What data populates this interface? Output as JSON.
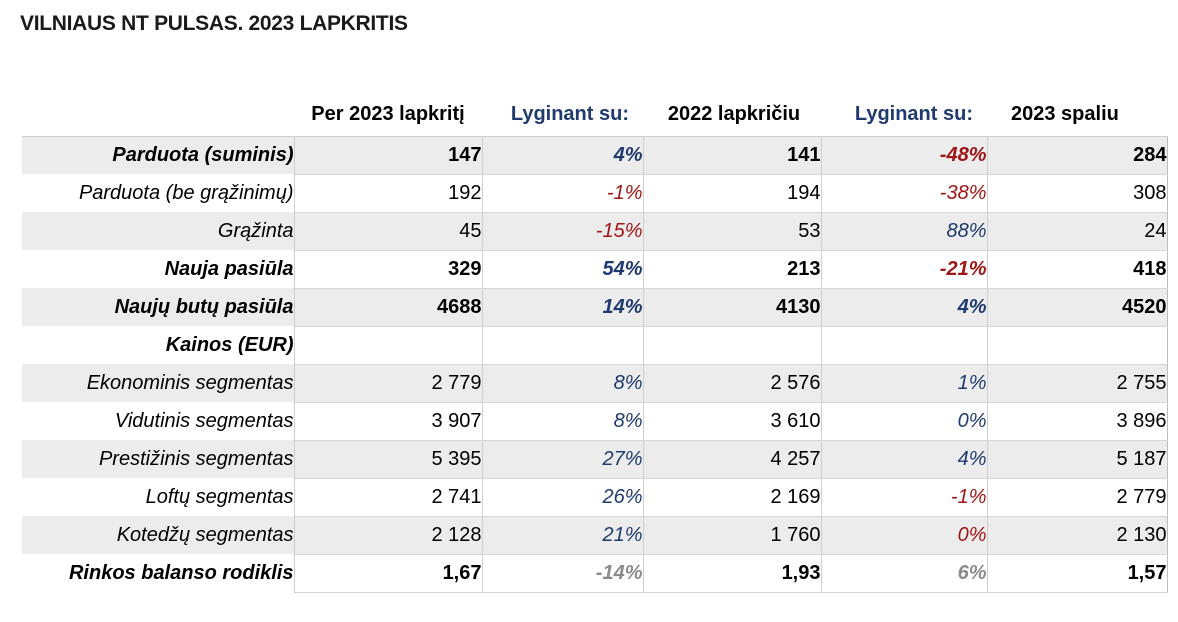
{
  "title": "VILNIAUS NT PULSAS. 2023 LAPKRITIS",
  "headers": {
    "col1": "Per 2023 lapkritį",
    "col2": "Lyginant su:",
    "col3": "2022 lapkričiu",
    "col4": "Lyginant su:",
    "col5": "2023 spaliu"
  },
  "rows": [
    {
      "label": "Parduota (suminis)",
      "v1": "147",
      "p1": "4%",
      "v2": "141",
      "p2": "-48%",
      "v3": "284"
    },
    {
      "label": "Parduota (be grąžinimų)",
      "v1": "192",
      "p1": "-1%",
      "v2": "194",
      "p2": "-38%",
      "v3": "308"
    },
    {
      "label": "Grąžinta",
      "v1": "45",
      "p1": "-15%",
      "v2": "53",
      "p2": "88%",
      "v3": "24"
    },
    {
      "label": "Nauja pasiūla",
      "v1": "329",
      "p1": "54%",
      "v2": "213",
      "p2": "-21%",
      "v3": "418"
    },
    {
      "label": "Naujų butų pasiūla",
      "v1": "4688",
      "p1": "14%",
      "v2": "4130",
      "p2": "4%",
      "v3": "4520"
    },
    {
      "label": "Kainos (EUR)",
      "v1": "",
      "p1": "",
      "v2": "",
      "p2": "",
      "v3": ""
    },
    {
      "label": "Ekonominis segmentas",
      "v1": "2 779",
      "p1": "8%",
      "v2": "2 576",
      "p2": "1%",
      "v3": "2 755"
    },
    {
      "label": "Vidutinis segmentas",
      "v1": "3 907",
      "p1": "8%",
      "v2": "3 610",
      "p2": "0%",
      "v3": "3 896"
    },
    {
      "label": "Prestižinis segmentas",
      "v1": "5 395",
      "p1": "27%",
      "v2": "4 257",
      "p2": "4%",
      "v3": "5 187"
    },
    {
      "label": "Loftų segmentas",
      "v1": "2 741",
      "p1": "26%",
      "v2": "2 169",
      "p2": "-1%",
      "v3": "2 779"
    },
    {
      "label": "Kotedžų segmentas",
      "v1": "2 128",
      "p1": "21%",
      "v2": "1 760",
      "p2": "0%",
      "v3": "2 130"
    },
    {
      "label": "Rinkos balanso rodiklis",
      "v1": "1,67",
      "p1": "-14%",
      "v2": "1,93",
      "p2": "6%",
      "v3": "1,57"
    }
  ],
  "colors": {
    "blue": "#1f3a6e",
    "red": "#a01515",
    "gray": "#8a8a8a",
    "shade": "#ececec"
  }
}
